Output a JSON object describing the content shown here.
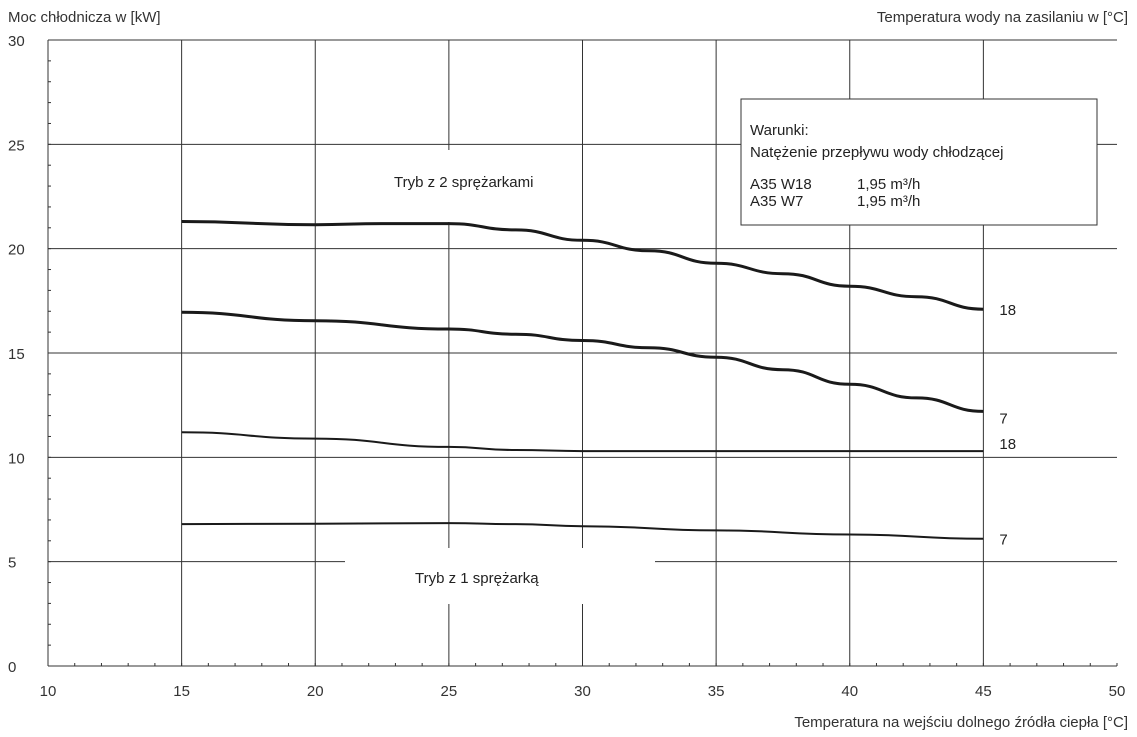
{
  "chart_data": {
    "type": "line",
    "ylabel": "Moc chłodnicza w [kW]",
    "xlabel": "Temperatura na wejściu dolnego źródła ciepła [°C]",
    "series_label_title": "Temperatura wody na zasilaniu w [°C]",
    "xlim": [
      10,
      50
    ],
    "ylim": [
      0,
      30
    ],
    "x_ticks": [
      "10",
      "15",
      "20",
      "25",
      "30",
      "35",
      "40",
      "45",
      "50"
    ],
    "y_ticks": [
      "0",
      "5",
      "10",
      "15",
      "20",
      "25",
      "30"
    ],
    "grid": true,
    "series": [
      {
        "name": "18",
        "group": "Tryb z 2 sprężarkami",
        "emphasis": "bold",
        "x": [
          15,
          20,
          22.5,
          25,
          27.5,
          30,
          32.5,
          35,
          37.5,
          40,
          42.5,
          45
        ],
        "y": [
          21.3,
          21.15,
          21.2,
          21.2,
          20.9,
          20.4,
          19.9,
          19.3,
          18.8,
          18.2,
          17.7,
          17.1
        ]
      },
      {
        "name": "7",
        "group": "Tryb z 2 sprężarkami",
        "emphasis": "bold",
        "x": [
          15,
          20,
          25,
          27.5,
          30,
          32.5,
          35,
          37.5,
          40,
          42.5,
          45
        ],
        "y": [
          16.95,
          16.55,
          16.15,
          15.9,
          15.6,
          15.25,
          14.8,
          14.2,
          13.5,
          12.85,
          12.2
        ]
      },
      {
        "name": "18",
        "group": "Tryb z 1 sprężarką",
        "emphasis": "normal",
        "x": [
          15,
          20,
          25,
          27.5,
          30,
          35,
          40,
          45
        ],
        "y": [
          11.2,
          10.9,
          10.5,
          10.35,
          10.3,
          10.3,
          10.3,
          10.3
        ]
      },
      {
        "name": "7",
        "group": "Tryb z 1 sprężarką",
        "emphasis": "normal",
        "x": [
          15,
          20,
          25,
          27.5,
          30,
          35,
          40,
          45
        ],
        "y": [
          6.8,
          6.82,
          6.85,
          6.8,
          6.7,
          6.5,
          6.3,
          6.1
        ]
      }
    ],
    "annotations": {
      "mode_2": "Tryb z 2 sprężarkami",
      "mode_1": "Tryb z 1 sprężarką"
    },
    "legend_box": {
      "title": "Warunki:",
      "subtitle": "Natężenie przepływu wody chłodzącej",
      "rows": [
        {
          "cond": "A35 W18",
          "flow": "1,95 m³/h"
        },
        {
          "cond": "A35 W7",
          "flow": "1,95 m³/h"
        }
      ]
    }
  }
}
